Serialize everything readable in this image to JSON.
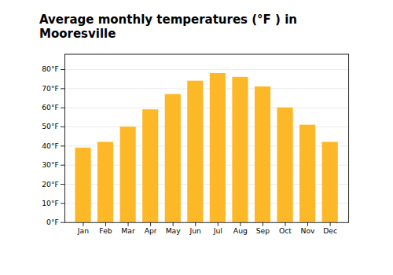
{
  "chart_data": {
    "type": "bar",
    "title": "Average monthly temperatures (°F ) in Mooresville",
    "categories": [
      "Jan",
      "Feb",
      "Mar",
      "Apr",
      "May",
      "Jun",
      "Jul",
      "Aug",
      "Sep",
      "Oct",
      "Nov",
      "Dec"
    ],
    "values": [
      39,
      42,
      50,
      59,
      67,
      74,
      78,
      76,
      71,
      60,
      51,
      42
    ],
    "color": "#FDB827",
    "ylim": [
      0,
      88
    ],
    "yticks": [
      {
        "value": 0,
        "label": "0°F"
      },
      {
        "value": 10,
        "label": "10°F"
      },
      {
        "value": 20,
        "label": "20°F"
      },
      {
        "value": 30,
        "label": "30°F"
      },
      {
        "value": 40,
        "label": "40°F"
      },
      {
        "value": 50,
        "label": "50°F"
      },
      {
        "value": 60,
        "label": "60°F"
      },
      {
        "value": 70,
        "label": "70°F"
      },
      {
        "value": 80,
        "label": "80°F"
      }
    ],
    "grid": true
  }
}
